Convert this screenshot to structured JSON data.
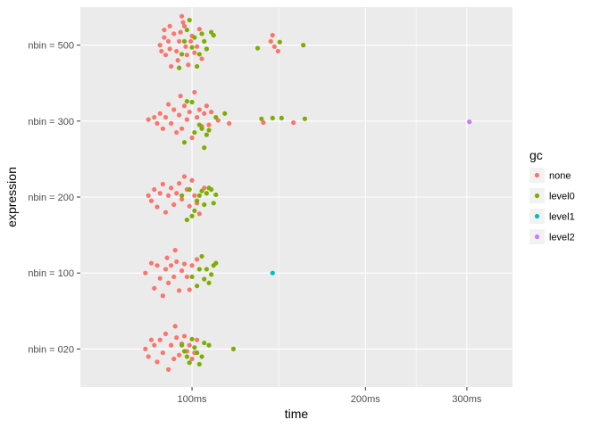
{
  "chart_data": {
    "type": "scatter",
    "title": "",
    "xlabel": "time",
    "ylabel": "expression",
    "x_scale": "log10",
    "x_unit": "ms",
    "xlim": [
      64,
      360
    ],
    "x_ticks": [
      100,
      200,
      300
    ],
    "x_tick_labels": [
      "100ms",
      "200ms",
      "300ms"
    ],
    "categories": [
      "nbin = 020",
      "nbin = 100",
      "nbin = 200",
      "nbin = 300",
      "nbin = 500"
    ],
    "grid": true,
    "legend": {
      "title": "gc",
      "position": "right",
      "entries": [
        "none",
        "level0",
        "level1",
        "level2"
      ]
    },
    "colors": {
      "none": "#F8766D",
      "level0": "#7CAE00",
      "level1": "#00BFC4",
      "level2": "#C77CFF"
    },
    "series": [
      {
        "category": "nbin = 500",
        "gc": "none",
        "points": [
          [
            88,
            0
          ],
          [
            88.5,
            -0.08
          ],
          [
            89.5,
            0.1
          ],
          [
            89.5,
            0.2
          ],
          [
            90,
            -0.13
          ],
          [
            91,
            0.05
          ],
          [
            91.5,
            -0.05
          ],
          [
            91.5,
            0.25
          ],
          [
            92,
            -0.28
          ],
          [
            93,
            0.15
          ],
          [
            94,
            -0.08
          ],
          [
            94.5,
            -0.2
          ],
          [
            95,
            0.05
          ],
          [
            95.5,
            0.17
          ],
          [
            96,
            0.38
          ],
          [
            96.5,
            0.3
          ],
          [
            97,
            0.25
          ],
          [
            97.5,
            -0.02
          ],
          [
            98,
            -0.13
          ],
          [
            98.5,
            -0.26
          ],
          [
            99.5,
            0.05
          ],
          [
            100,
            0.12
          ],
          [
            101,
            -0.1
          ],
          [
            102,
            -0.02
          ],
          [
            103,
            0.21
          ],
          [
            104,
            -0.18
          ],
          [
            106,
            -0.05
          ],
          [
            137,
            0.05
          ],
          [
            138,
            0.13
          ],
          [
            139,
            -0.02
          ],
          [
            141,
            -0.08
          ]
        ]
      },
      {
        "category": "nbin = 500",
        "gc": "level0",
        "points": [
          [
            95,
            -0.3
          ],
          [
            96,
            -0.12
          ],
          [
            97,
            0.05
          ],
          [
            98,
            0.2
          ],
          [
            99,
            0.33
          ],
          [
            100,
            -0.03
          ],
          [
            101,
            0.1
          ],
          [
            102,
            -0.28
          ],
          [
            103,
            -0.12
          ],
          [
            104,
            0.15
          ],
          [
            105,
            0.05
          ],
          [
            106,
            -0.05
          ],
          [
            108,
            0.17
          ],
          [
            109,
            0.13
          ],
          [
            130,
            -0.04
          ],
          [
            142,
            0.04
          ],
          [
            156,
            0
          ]
        ]
      },
      {
        "category": "nbin = 300",
        "gc": "none",
        "points": [
          [
            84,
            0.02
          ],
          [
            86,
            0.05
          ],
          [
            87,
            -0.03
          ],
          [
            88,
            0.1
          ],
          [
            89,
            -0.1
          ],
          [
            90,
            0.05
          ],
          [
            91,
            0.22
          ],
          [
            92,
            -0.03
          ],
          [
            93,
            0.15
          ],
          [
            94,
            -0.15
          ],
          [
            95,
            0.08
          ],
          [
            95.5,
            0.33
          ],
          [
            96,
            -0.1
          ],
          [
            97,
            0.2
          ],
          [
            98,
            0.02
          ],
          [
            99,
            0.12
          ],
          [
            100,
            -0.22
          ],
          [
            101,
            0.38
          ],
          [
            102,
            0.05
          ],
          [
            103,
            0.15
          ],
          [
            104,
            -0.07
          ],
          [
            105,
            0.1
          ],
          [
            106,
            0.2
          ],
          [
            107,
            -0.05
          ],
          [
            108,
            0.12
          ],
          [
            111,
            0.01
          ],
          [
            116,
            -0.03
          ],
          [
            133,
            -0.02
          ],
          [
            150,
            -0.02
          ]
        ]
      },
      {
        "category": "nbin = 300",
        "gc": "level0",
        "points": [
          [
            97,
            -0.28
          ],
          [
            98,
            0.26
          ],
          [
            100,
            0.25
          ],
          [
            101,
            -0.15
          ],
          [
            103,
            -0.05
          ],
          [
            104,
            -0.1
          ],
          [
            105,
            -0.35
          ],
          [
            106,
            -0.18
          ],
          [
            107,
            -0.12
          ],
          [
            110,
            0.05
          ],
          [
            114,
            0.1
          ],
          [
            132,
            0.03
          ],
          [
            138,
            0.04
          ],
          [
            143,
            0.04
          ],
          [
            157,
            0.03
          ]
        ]
      },
      {
        "category": "nbin = 300",
        "gc": "level2",
        "points": [
          [
            303,
            -0.01
          ]
        ]
      },
      {
        "category": "nbin = 200",
        "gc": "none",
        "points": [
          [
            84,
            0.02
          ],
          [
            85,
            -0.05
          ],
          [
            86,
            0.1
          ],
          [
            87,
            -0.13
          ],
          [
            88,
            0.05
          ],
          [
            89,
            0.17
          ],
          [
            90,
            -0.2
          ],
          [
            91,
            0.02
          ],
          [
            92,
            0.12
          ],
          [
            93,
            -0.1
          ],
          [
            94,
            0.05
          ],
          [
            95,
            0.18
          ],
          [
            96,
            -0.03
          ],
          [
            97,
            0.27
          ],
          [
            98,
            0.1
          ],
          [
            99,
            -0.12
          ],
          [
            100,
            0.22
          ],
          [
            101,
            0.02
          ],
          [
            102,
            -0.08
          ],
          [
            103,
            -0.22
          ],
          [
            105,
            0.12
          ]
        ]
      },
      {
        "category": "nbin = 200",
        "gc": "level0",
        "points": [
          [
            96,
            0.02
          ],
          [
            98,
            -0.3
          ],
          [
            99,
            0.1
          ],
          [
            100,
            -0.25
          ],
          [
            101,
            -0.18
          ],
          [
            102,
            -0.05
          ],
          [
            103,
            0.02
          ],
          [
            104,
            0.08
          ],
          [
            105,
            -0.1
          ],
          [
            106,
            0.05
          ],
          [
            107,
            0.12
          ],
          [
            108,
            0.1
          ],
          [
            109,
            -0.08
          ],
          [
            110,
            0.03
          ]
        ]
      },
      {
        "category": "nbin = 100",
        "gc": "none",
        "points": [
          [
            83,
            0
          ],
          [
            85,
            0.13
          ],
          [
            86,
            -0.2
          ],
          [
            87,
            0.1
          ],
          [
            88,
            -0.07
          ],
          [
            89,
            -0.3
          ],
          [
            90,
            0.05
          ],
          [
            90.5,
            0.2
          ],
          [
            91,
            -0.13
          ],
          [
            92,
            0.1
          ],
          [
            93,
            -0.05
          ],
          [
            93.5,
            0.3
          ],
          [
            94,
            0.15
          ],
          [
            95,
            -0.23
          ],
          [
            96,
            0.03
          ],
          [
            97,
            0.12
          ],
          [
            98,
            -0.05
          ],
          [
            99,
            -0.22
          ],
          [
            100,
            0.1
          ],
          [
            102,
            0.18
          ]
        ]
      },
      {
        "category": "nbin = 100",
        "gc": "level0",
        "points": [
          [
            100,
            -0.05
          ],
          [
            102,
            -0.17
          ],
          [
            103,
            0.05
          ],
          [
            104,
            0.22
          ],
          [
            105,
            -0.08
          ],
          [
            106,
            0.05
          ],
          [
            107,
            -0.13
          ],
          [
            108,
            -0.02
          ],
          [
            109,
            0.1
          ],
          [
            110,
            0.13
          ]
        ]
      },
      {
        "category": "nbin = 100",
        "gc": "level1",
        "points": [
          [
            138,
            0
          ]
        ]
      },
      {
        "category": "nbin = 020",
        "gc": "none",
        "points": [
          [
            83,
            0
          ],
          [
            84,
            -0.1
          ],
          [
            85,
            0.12
          ],
          [
            86,
            0.05
          ],
          [
            87,
            -0.17
          ],
          [
            88,
            0.12
          ],
          [
            89,
            -0.05
          ],
          [
            90,
            0.2
          ],
          [
            91,
            -0.27
          ],
          [
            92,
            0.05
          ],
          [
            93,
            -0.13
          ],
          [
            93.5,
            0.3
          ],
          [
            94,
            0.15
          ],
          [
            95,
            -0.08
          ],
          [
            96,
            0.07
          ],
          [
            97,
            0.17
          ],
          [
            98,
            -0.03
          ],
          [
            99,
            0.05
          ],
          [
            100,
            -0.13
          ],
          [
            101,
            -0.05
          ],
          [
            102,
            0.12
          ]
        ]
      },
      {
        "category": "nbin = 020",
        "gc": "level0",
        "points": [
          [
            96,
            0.05
          ],
          [
            97,
            -0.03
          ],
          [
            98,
            -0.1
          ],
          [
            99,
            -0.18
          ],
          [
            100,
            0.13
          ],
          [
            101,
            0.02
          ],
          [
            102,
            -0.05
          ],
          [
            103,
            -0.2
          ],
          [
            104,
            -0.1
          ],
          [
            105,
            0.08
          ],
          [
            107,
            0.05
          ],
          [
            118,
            0
          ]
        ]
      }
    ]
  }
}
